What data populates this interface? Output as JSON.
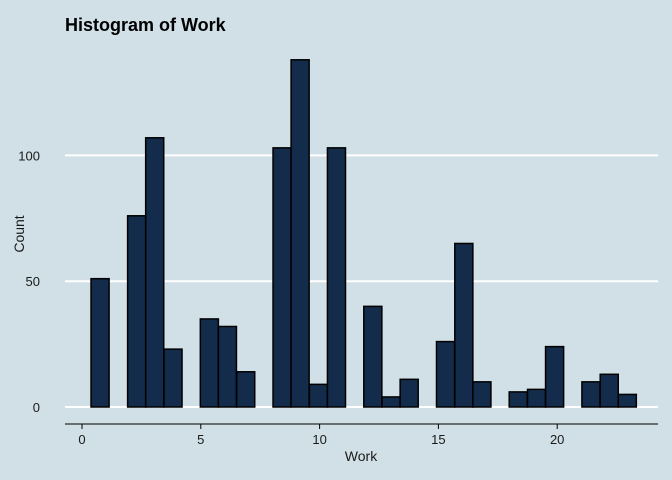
{
  "chart_data": {
    "type": "bar",
    "title": "Histogram of Work",
    "xlabel": "Work",
    "ylabel": "Count",
    "xlim": [
      -0.5,
      24
    ],
    "ylim": [
      0,
      140
    ],
    "x_ticks": [
      0,
      5,
      10,
      15,
      20
    ],
    "y_ticks": [
      0,
      50,
      100
    ],
    "bin_width": 0.76,
    "bins": [
      {
        "x": 0.76,
        "count": 51
      },
      {
        "x": 2.3,
        "count": 76
      },
      {
        "x": 3.06,
        "count": 107
      },
      {
        "x": 3.83,
        "count": 23
      },
      {
        "x": 5.36,
        "count": 35
      },
      {
        "x": 6.12,
        "count": 32
      },
      {
        "x": 6.89,
        "count": 14
      },
      {
        "x": 8.42,
        "count": 103
      },
      {
        "x": 9.18,
        "count": 138
      },
      {
        "x": 9.95,
        "count": 9
      },
      {
        "x": 10.71,
        "count": 103
      },
      {
        "x": 12.24,
        "count": 40
      },
      {
        "x": 13.01,
        "count": 4
      },
      {
        "x": 13.77,
        "count": 11
      },
      {
        "x": 15.3,
        "count": 26
      },
      {
        "x": 16.07,
        "count": 65
      },
      {
        "x": 16.83,
        "count": 10
      },
      {
        "x": 18.36,
        "count": 6
      },
      {
        "x": 19.13,
        "count": 7
      },
      {
        "x": 19.89,
        "count": 24
      },
      {
        "x": 21.42,
        "count": 10
      },
      {
        "x": 22.19,
        "count": 13
      },
      {
        "x": 22.95,
        "count": 5
      }
    ],
    "grid": true,
    "colors": {
      "background": "#d0e0e6",
      "bar_fill": "#132c4c",
      "bar_stroke": "#000000",
      "grid": "#ffffff"
    }
  }
}
